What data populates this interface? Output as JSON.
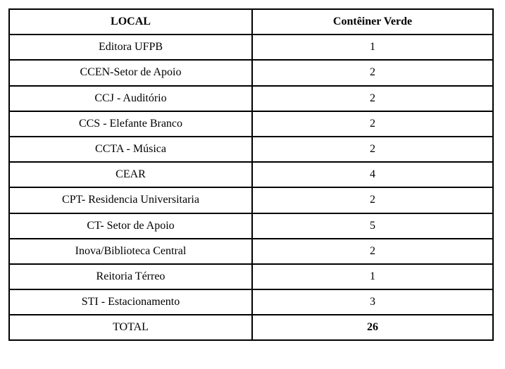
{
  "table": {
    "headers": [
      "LOCAL",
      "Contêiner Verde"
    ],
    "rows": [
      {
        "local": "Editora UFPB",
        "value": "1"
      },
      {
        "local": "CCEN-Setor de Apoio",
        "value": "2"
      },
      {
        "local": "CCJ - Auditório",
        "value": "2"
      },
      {
        "local": "CCS - Elefante Branco",
        "value": "2"
      },
      {
        "local": "CCTA - Música",
        "value": "2"
      },
      {
        "local": "CEAR",
        "value": "4"
      },
      {
        "local": "CPT- Residencia Universitaria",
        "value": "2"
      },
      {
        "local": "CT- Setor de Apoio",
        "value": "5"
      },
      {
        "local": "Inova/Biblioteca Central",
        "value": "2"
      },
      {
        "local": "Reitoria Térreo",
        "value": "1"
      },
      {
        "local": "STI - Estacionamento",
        "value": "3"
      }
    ],
    "total": {
      "label": "TOTAL",
      "value": "26"
    }
  }
}
